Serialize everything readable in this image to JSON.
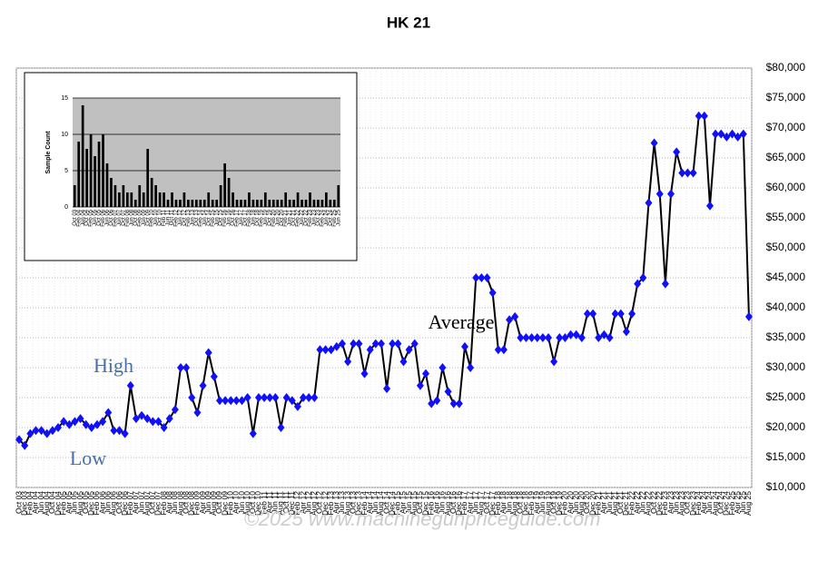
{
  "chart_data": [
    {
      "type": "line",
      "title": "HK 21",
      "annotations": [
        "High",
        "Low",
        "Average"
      ],
      "watermark": "©2025 www.machinegunpriceguide.com",
      "categories": [
        "Oct 03",
        "Dec 03",
        "Feb 04",
        "Apr 04",
        "Jun 04",
        "Aug 04",
        "Oct 04",
        "Dec 04",
        "Feb 05",
        "Apr 05",
        "Jun 05",
        "Aug 05",
        "Oct 05",
        "Dec 05",
        "Feb 06",
        "Apr 06",
        "Jun 06",
        "Aug 06",
        "Oct 06",
        "Dec 06",
        "Feb 07",
        "Apr 07",
        "Jun 07",
        "Aug 07",
        "Oct 07",
        "Dec 07",
        "Feb 08",
        "Apr 08",
        "Jun 08",
        "Aug 08",
        "Oct 08",
        "Dec 08",
        "Feb 09",
        "Apr 09",
        "Jun 09",
        "Aug 09",
        "Oct 09",
        "Dec 09",
        "Feb 10",
        "Apr 10",
        "Jun 10",
        "Aug 10",
        "Oct 10",
        "Dec 10",
        "Feb 11",
        "Apr 11",
        "Jun 11",
        "Aug 11",
        "Oct 11",
        "Dec 11",
        "Feb 12",
        "Apr 12",
        "Jun 12",
        "Aug 12",
        "Oct 12",
        "Dec 12",
        "Feb 13",
        "Apr 13",
        "Jun 13",
        "Aug 13",
        "Oct 13",
        "Dec 13",
        "Feb 14",
        "Apr 14",
        "Jun 14",
        "Aug 14",
        "Oct 14",
        "Dec 14",
        "Feb 15",
        "Apr 15",
        "Jun 15",
        "Aug 15",
        "Oct 15",
        "Dec 15",
        "Feb 16",
        "Apr 16",
        "Jun 16",
        "Aug 16",
        "Oct 16",
        "Dec 16",
        "Feb 17",
        "Apr 17",
        "Jun 17",
        "Aug 17",
        "Oct 17",
        "Dec 17",
        "Feb 18",
        "Apr 18",
        "Jun 18",
        "Aug 18",
        "Oct 18",
        "Dec 18",
        "Feb 19",
        "Apr 19",
        "Jun 19",
        "Aug 19",
        "Oct 19",
        "Dec 19",
        "Feb 20",
        "Apr 20",
        "Jun 20",
        "Aug 20",
        "Oct 20",
        "Dec 20",
        "Feb 21",
        "Apr 21",
        "Jun 21",
        "Aug 21",
        "Oct 21",
        "Dec 21",
        "Feb 22",
        "Apr 22",
        "Jun 22",
        "Aug 22",
        "Oct 22",
        "Dec 22",
        "Feb 23",
        "Apr 23",
        "Jun 23",
        "Aug 23",
        "Oct 23",
        "Dec 23",
        "Feb 24",
        "Apr 24",
        "Jun 24",
        "Aug 24",
        "Oct 24",
        "Dec 24",
        "Feb 25",
        "Apr 25",
        "Jun 25",
        "Aug 25"
      ],
      "series": [
        {
          "name": "Average",
          "color": "#1010ff",
          "line_color": "#000000",
          "values": [
            18000,
            17000,
            19000,
            19500,
            19500,
            19000,
            19500,
            20000,
            21000,
            20500,
            21000,
            21500,
            20500,
            20000,
            20500,
            21000,
            22500,
            19500,
            19500,
            19000,
            27000,
            21500,
            22000,
            21500,
            21000,
            21000,
            20000,
            21500,
            23000,
            30000,
            30000,
            25000,
            22500,
            27000,
            32500,
            28500,
            24500,
            24500,
            24500,
            24500,
            24500,
            25000,
            19000,
            25000,
            25000,
            25000,
            25000,
            20000,
            25000,
            24500,
            23500,
            25000,
            25000,
            25000,
            33000,
            33000,
            33000,
            33500,
            34000,
            31000,
            34000,
            34000,
            29000,
            33000,
            34000,
            34000,
            26500,
            34000,
            34000,
            31000,
            33000,
            34000,
            27000,
            29000,
            24000,
            24500,
            30000,
            26000,
            24000,
            24000,
            33500,
            30000,
            45000,
            45000,
            45000,
            42500,
            33000,
            33000,
            38000,
            38500,
            35000,
            35000,
            35000,
            35000,
            35000,
            35000,
            31000,
            35000,
            35000,
            35500,
            35500,
            35000,
            39000,
            39000,
            35000,
            35500,
            35000,
            39000,
            39000,
            36000,
            39000,
            44000,
            45000,
            57500,
            67500,
            59000,
            44000,
            59000,
            66000,
            62500,
            62500,
            62500,
            72000,
            72000,
            57000,
            69000,
            69000,
            68500,
            69000,
            68500,
            69000,
            38500
          ]
        }
      ],
      "ylim": [
        10000,
        80000
      ],
      "yticks": [
        {
          "value": 10000,
          "label": "$10,000"
        },
        {
          "value": 15000,
          "label": "$15,000"
        },
        {
          "value": 20000,
          "label": "$20,000"
        },
        {
          "value": 25000,
          "label": "$25,000"
        },
        {
          "value": 30000,
          "label": "$30,000"
        },
        {
          "value": 35000,
          "label": "$35,000"
        },
        {
          "value": 40000,
          "label": "$40,000"
        },
        {
          "value": 45000,
          "label": "$45,000"
        },
        {
          "value": 50000,
          "label": "$50,000"
        },
        {
          "value": 55000,
          "label": "$55,000"
        },
        {
          "value": 60000,
          "label": "$60,000"
        },
        {
          "value": 65000,
          "label": "$65,000"
        },
        {
          "value": 70000,
          "label": "$70,000"
        },
        {
          "value": 75000,
          "label": "$75,000"
        },
        {
          "value": 80000,
          "label": "$80,000"
        }
      ],
      "grid": true
    },
    {
      "type": "bar",
      "y_label": "Sample Count",
      "color": "#000000",
      "categories": [
        "Oct 03",
        "Feb 04",
        "Jun 04",
        "Oct 04",
        "Feb 05",
        "Jun 05",
        "Oct 05",
        "Feb 06",
        "Jun 06",
        "Oct 06",
        "Feb 07",
        "Jun 07",
        "Oct 07",
        "Feb 08",
        "Jun 08",
        "Oct 08",
        "Feb 09",
        "Jun 09",
        "Oct 09",
        "Feb 10",
        "Jun 10",
        "Oct 10",
        "Feb 11",
        "Jun 11",
        "Oct 11",
        "Feb 12",
        "Jun 12",
        "Oct 12",
        "Feb 13",
        "Jun 13",
        "Oct 13",
        "Feb 14",
        "Jun 14",
        "Oct 14",
        "Feb 15",
        "Jun 15",
        "Oct 15",
        "Feb 16",
        "Jun 16",
        "Oct 16",
        "Feb 17",
        "Jun 17",
        "Oct 17",
        "Feb 18",
        "Jun 18",
        "Oct 18",
        "Feb 19",
        "Jun 19",
        "Oct 19",
        "Feb 20",
        "Jun 20",
        "Oct 20",
        "Feb 21",
        "Jun 21",
        "Oct 21",
        "Feb 22",
        "Jun 22",
        "Oct 22",
        "Feb 23",
        "Jun 23",
        "Oct 23",
        "Feb 24",
        "Jun 24",
        "Oct 24",
        "Feb 25",
        "Jun 25"
      ],
      "values": [
        3,
        9,
        14,
        8,
        10,
        7,
        9,
        10,
        6,
        4,
        3,
        2,
        3,
        2,
        2,
        1,
        3,
        2,
        8,
        4,
        3,
        2,
        2,
        1,
        2,
        1,
        1,
        2,
        1,
        1,
        1,
        1,
        1,
        2,
        1,
        1,
        3,
        6,
        4,
        2,
        1,
        1,
        1,
        2,
        1,
        1,
        1,
        2,
        1,
        1,
        1,
        1,
        2,
        1,
        1,
        2,
        1,
        1,
        2,
        1,
        1,
        1,
        2,
        1,
        1,
        3
      ],
      "ylim": [
        0,
        15
      ],
      "yticks": [
        0,
        5,
        10,
        15
      ],
      "grid": true
    }
  ]
}
